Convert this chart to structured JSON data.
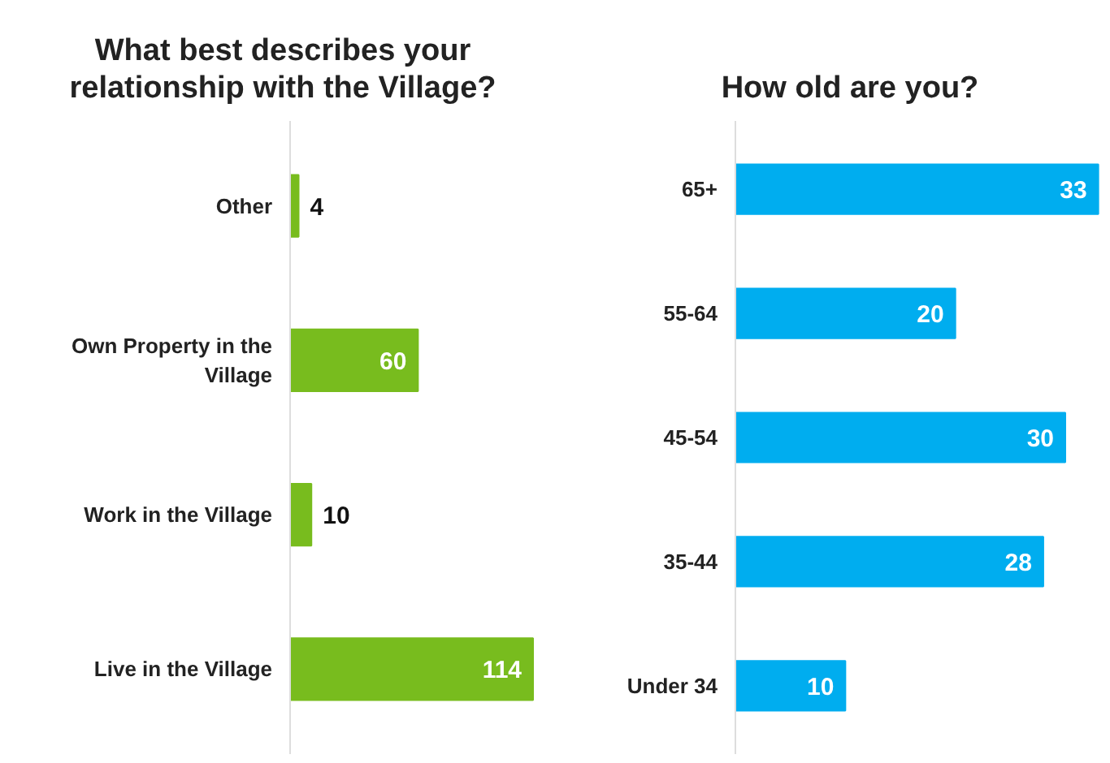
{
  "chart_data": [
    {
      "type": "bar",
      "orientation": "horizontal",
      "title": "What best describes your\nrelationship with the Village?",
      "categories": [
        "Other",
        "Own Property in the\nVillage",
        "Work in the Village",
        "Live in the Village"
      ],
      "values": [
        4,
        60,
        10,
        114
      ],
      "color": "#78bc1e",
      "data_labels": true,
      "grid": false
    },
    {
      "type": "bar",
      "orientation": "horizontal",
      "title": "How old are you?",
      "categories": [
        "65+",
        "55-64",
        "45-54",
        "35-44",
        "Under 34"
      ],
      "values": [
        33,
        20,
        30,
        28,
        10
      ],
      "color": "#00adef",
      "data_labels": true,
      "grid": false
    }
  ]
}
